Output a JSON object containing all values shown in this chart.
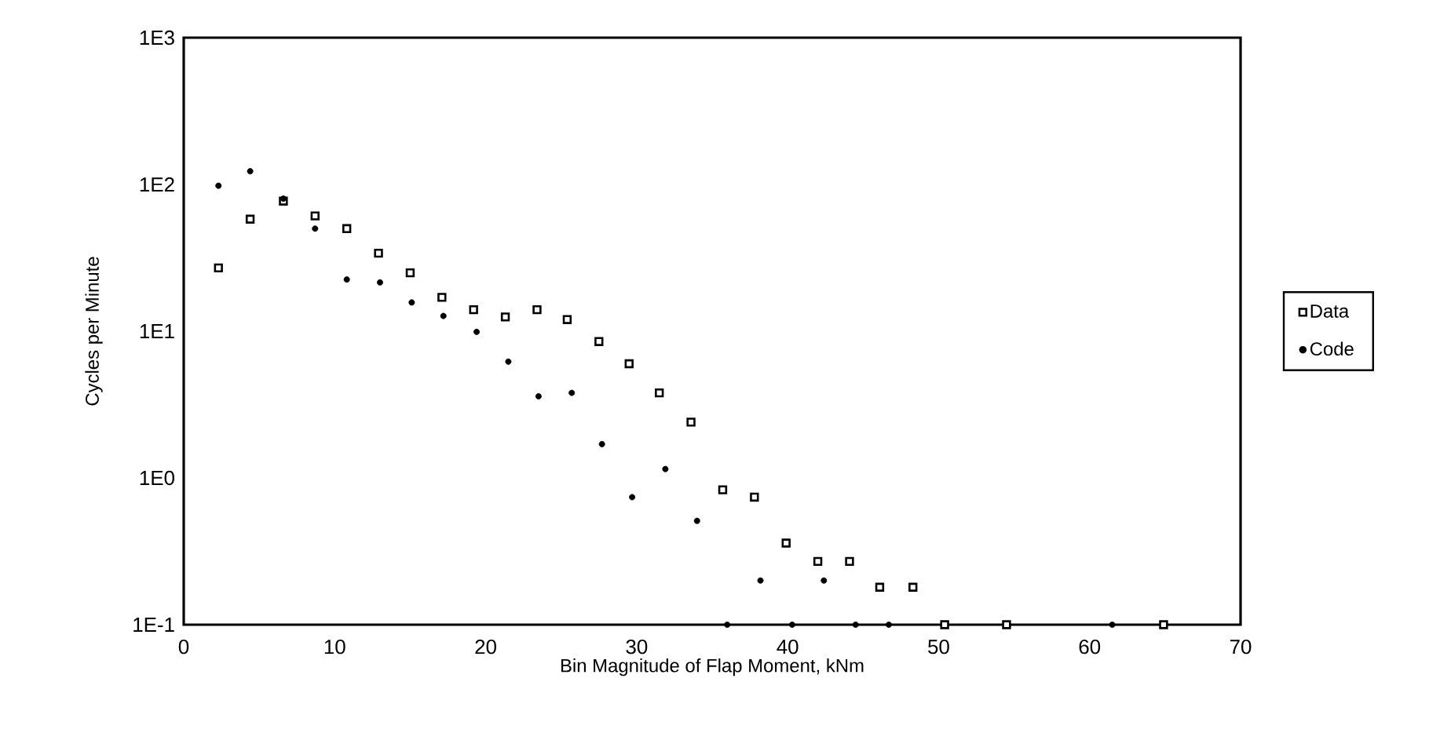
{
  "chart_data": {
    "type": "scatter",
    "xlabel": "Bin Magnitude of Flap Moment, kNm",
    "ylabel": "Cycles per Minute",
    "log": "y",
    "xlim": [
      0,
      70
    ],
    "xticks": [
      0,
      10,
      20,
      30,
      40,
      50,
      60,
      70
    ],
    "ylim": [
      0.1,
      1000
    ],
    "yticks": [
      {
        "value": 0.1,
        "label": "1E-1"
      },
      {
        "value": 1,
        "label": "1E0"
      },
      {
        "value": 10,
        "label": "1E1"
      },
      {
        "value": 100,
        "label": "1E2"
      },
      {
        "value": 1000,
        "label": "1E3"
      }
    ],
    "grid": false,
    "legend": "right",
    "series": [
      {
        "name": "Data",
        "color": "#000000",
        "marker": "square",
        "x": [
          2.3,
          4.4,
          6.6,
          8.7,
          10.8,
          12.9,
          15.0,
          17.1,
          19.2,
          21.3,
          23.4,
          25.4,
          27.5,
          29.5,
          31.5,
          33.6,
          35.7,
          37.8,
          39.9,
          42.0,
          44.1,
          46.1,
          48.3,
          50.4,
          54.5,
          64.9
        ],
        "values": [
          27,
          58,
          77,
          61,
          50,
          34,
          25,
          17,
          14,
          12.5,
          14,
          12,
          8.5,
          6,
          3.8,
          2.4,
          0.83,
          0.74,
          0.36,
          0.27,
          0.27,
          0.18,
          0.18,
          0.1,
          0.1,
          0.1
        ]
      },
      {
        "name": "Code",
        "color": "#000000",
        "marker": "circle",
        "x": [
          2.3,
          4.4,
          6.6,
          8.7,
          10.8,
          13.0,
          15.1,
          17.2,
          19.4,
          21.5,
          23.5,
          25.7,
          27.7,
          29.7,
          31.9,
          34.0,
          36.0,
          38.2,
          40.3,
          42.4,
          44.5,
          46.7,
          61.5
        ],
        "values": [
          98,
          123,
          80,
          50,
          22.5,
          21.5,
          15.7,
          12.7,
          9.9,
          6.2,
          3.6,
          3.8,
          1.7,
          0.74,
          1.15,
          0.51,
          0.1,
          0.2,
          0.1,
          0.2,
          0.1,
          0.1,
          0.1
        ]
      }
    ]
  }
}
